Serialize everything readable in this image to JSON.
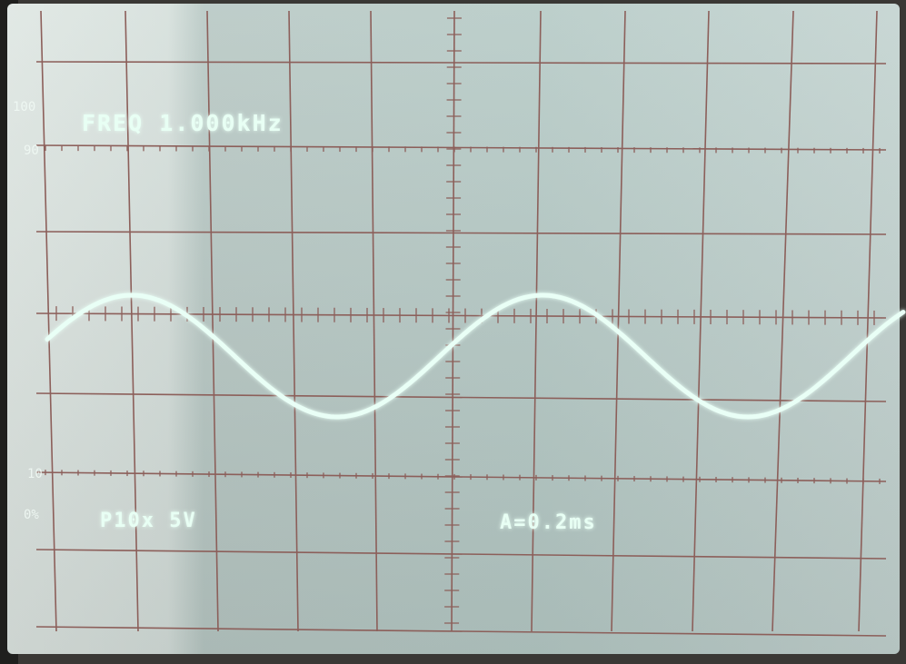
{
  "screen": {
    "scale_labels": [
      "100",
      "90",
      "10",
      "0%"
    ],
    "readouts": {
      "frequency": "FREQ 1.000kHz",
      "probe": "P10x 5V",
      "timebase": "A=0.2ms"
    }
  }
}
